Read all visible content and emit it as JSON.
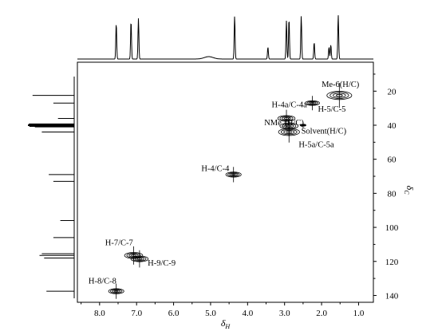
{
  "chart_data": {
    "type": "scatter",
    "subtype": "2D NMR HSQC contour plot with 1H projection (top) and 13C projection (left)",
    "x_axis": {
      "label": "δH",
      "ticks": [
        "8.0",
        "7.0",
        "6.0",
        "5.0",
        "4.0",
        "3.0",
        "2.0",
        "1.0"
      ],
      "tick_values": [
        8,
        7,
        6,
        5,
        4,
        3,
        2,
        1
      ],
      "range": [
        8.6,
        0.6
      ],
      "reversed": true
    },
    "y_axis": {
      "label": "δC",
      "ticks": [
        "20",
        "40",
        "60",
        "80",
        "100",
        "120",
        "140"
      ],
      "tick_values": [
        20,
        40,
        60,
        80,
        100,
        120,
        140
      ],
      "range": [
        3,
        144
      ],
      "reversed": true,
      "position": "right"
    },
    "cross_peaks": [
      {
        "label": "Me-6(H/C)",
        "x": 1.52,
        "y": 22.5,
        "size": 1.3
      },
      {
        "label": "H-5/C-5",
        "x": 2.25,
        "y": 27.0,
        "size": 0.75
      },
      {
        "label": "H-4a/C-4a",
        "x": 2.95,
        "y": 36.0,
        "size": 0.9
      },
      {
        "label": "NMe₂(H/C)",
        "x": 2.88,
        "y": 40.5,
        "size": 0.95
      },
      {
        "label": "H-5a/C-5a",
        "x": 2.88,
        "y": 44.0,
        "size": 1.1
      },
      {
        "label": "Solvent(H/C)",
        "x": 2.5,
        "y": 40.0,
        "size": 0.3
      },
      {
        "label": "H-4/C-4",
        "x": 4.38,
        "y": 69.0,
        "size": 0.8
      },
      {
        "label": "H-7/C-7",
        "x": 7.08,
        "y": 116.5,
        "size": 0.95
      },
      {
        "label": "H-9/C-9",
        "x": 6.92,
        "y": 118.5,
        "size": 0.9
      },
      {
        "label": "H-8/C-8",
        "x": 7.55,
        "y": 137.5,
        "size": 0.8
      }
    ],
    "annotations": [
      {
        "text": "Me-6(H/C)",
        "x": 2.0,
        "y": 17.5
      },
      {
        "text": "H-4a/C-4a",
        "x": 3.35,
        "y": 29.5
      },
      {
        "text": "H-5/C-5",
        "x": 2.1,
        "y": 32.0
      },
      {
        "text": "NMe₂(H/C)",
        "x": 3.55,
        "y": 40.0
      },
      {
        "text": "Solvent(H/C)",
        "x": 2.55,
        "y": 45.0
      },
      {
        "text": "H-5a/C-5a",
        "x": 2.62,
        "y": 53.0
      },
      {
        "text": "H-4/C-4",
        "x": 5.25,
        "y": 67.0
      },
      {
        "text": "H-7/C-7",
        "x": 7.85,
        "y": 110.5
      },
      {
        "text": "H-9/C-9",
        "x": 6.7,
        "y": 122.5
      },
      {
        "text": "H-8/C-8",
        "x": 8.3,
        "y": 133.0
      }
    ],
    "projection_1H_peaks": [
      {
        "x": 7.55,
        "h": 0.75
      },
      {
        "x": 7.15,
        "h": 0.8
      },
      {
        "x": 6.95,
        "h": 0.85
      },
      {
        "x": 5.05,
        "h": 0.05
      },
      {
        "x": 4.35,
        "h": 0.9
      },
      {
        "x": 3.45,
        "h": 0.25
      },
      {
        "x": 2.95,
        "h": 0.8
      },
      {
        "x": 2.88,
        "h": 0.85
      },
      {
        "x": 2.55,
        "h": 0.9
      },
      {
        "x": 2.2,
        "h": 0.35
      },
      {
        "x": 1.8,
        "h": 0.25
      },
      {
        "x": 1.75,
        "h": 0.3
      },
      {
        "x": 1.55,
        "h": 0.92
      }
    ],
    "projection_13C_peaks": [
      {
        "y": 22.5,
        "h": 0.9
      },
      {
        "y": 27.0,
        "h": 0.45
      },
      {
        "y": 36.0,
        "h": 0.35
      },
      {
        "y": 39.5,
        "h": 0.98
      },
      {
        "y": 40.0,
        "h": 1.0
      },
      {
        "y": 40.5,
        "h": 0.97
      },
      {
        "y": 41.0,
        "h": 0.85
      },
      {
        "y": 44.0,
        "h": 0.7
      },
      {
        "y": 69.0,
        "h": 0.55
      },
      {
        "y": 73.0,
        "h": 0.45
      },
      {
        "y": 96.0,
        "h": 0.3
      },
      {
        "y": 106.0,
        "h": 0.45
      },
      {
        "y": 115.5,
        "h": 0.7
      },
      {
        "y": 116.5,
        "h": 0.75
      },
      {
        "y": 118.0,
        "h": 0.65
      },
      {
        "y": 137.5,
        "h": 0.6
      }
    ]
  }
}
